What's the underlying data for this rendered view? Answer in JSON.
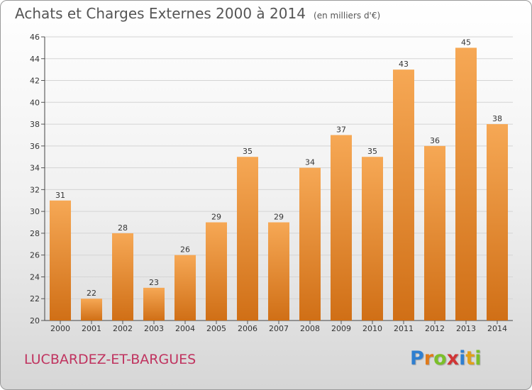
{
  "header": {
    "title": "Achats et Charges Externes 2000 à 2014",
    "subtitle": "(en milliers d'€)"
  },
  "footer": {
    "commune": "LUCBARDEZ-ET-BARGUES",
    "logo_letters": [
      "P",
      "r",
      "o",
      "x",
      "i",
      "t",
      "i"
    ],
    "logo_colors": [
      "#2f7fd0",
      "#e07a1a",
      "#7bbf2a",
      "#d03535",
      "#2f7fd0",
      "#e0a01a",
      "#7bbf2a"
    ]
  },
  "colors": {
    "bar_light": "#f6a855",
    "bar_dark": "#d06f16",
    "grid": "#d4d4d4"
  },
  "chart_data": {
    "type": "bar",
    "title": "Achats et Charges Externes 2000 à 2014",
    "subtitle": "(en milliers d'€)",
    "categories": [
      "2000",
      "2001",
      "2002",
      "2003",
      "2004",
      "2005",
      "2006",
      "2007",
      "2008",
      "2009",
      "2010",
      "2011",
      "2012",
      "2013",
      "2014"
    ],
    "values": [
      31,
      22,
      28,
      23,
      26,
      29,
      35,
      29,
      34,
      37,
      35,
      43,
      36,
      45,
      38
    ],
    "ylim": [
      20,
      46
    ],
    "yticks": [
      20,
      22,
      24,
      26,
      28,
      30,
      32,
      34,
      36,
      38,
      40,
      42,
      44,
      46
    ],
    "grid": "horizontal",
    "legend": "none"
  }
}
